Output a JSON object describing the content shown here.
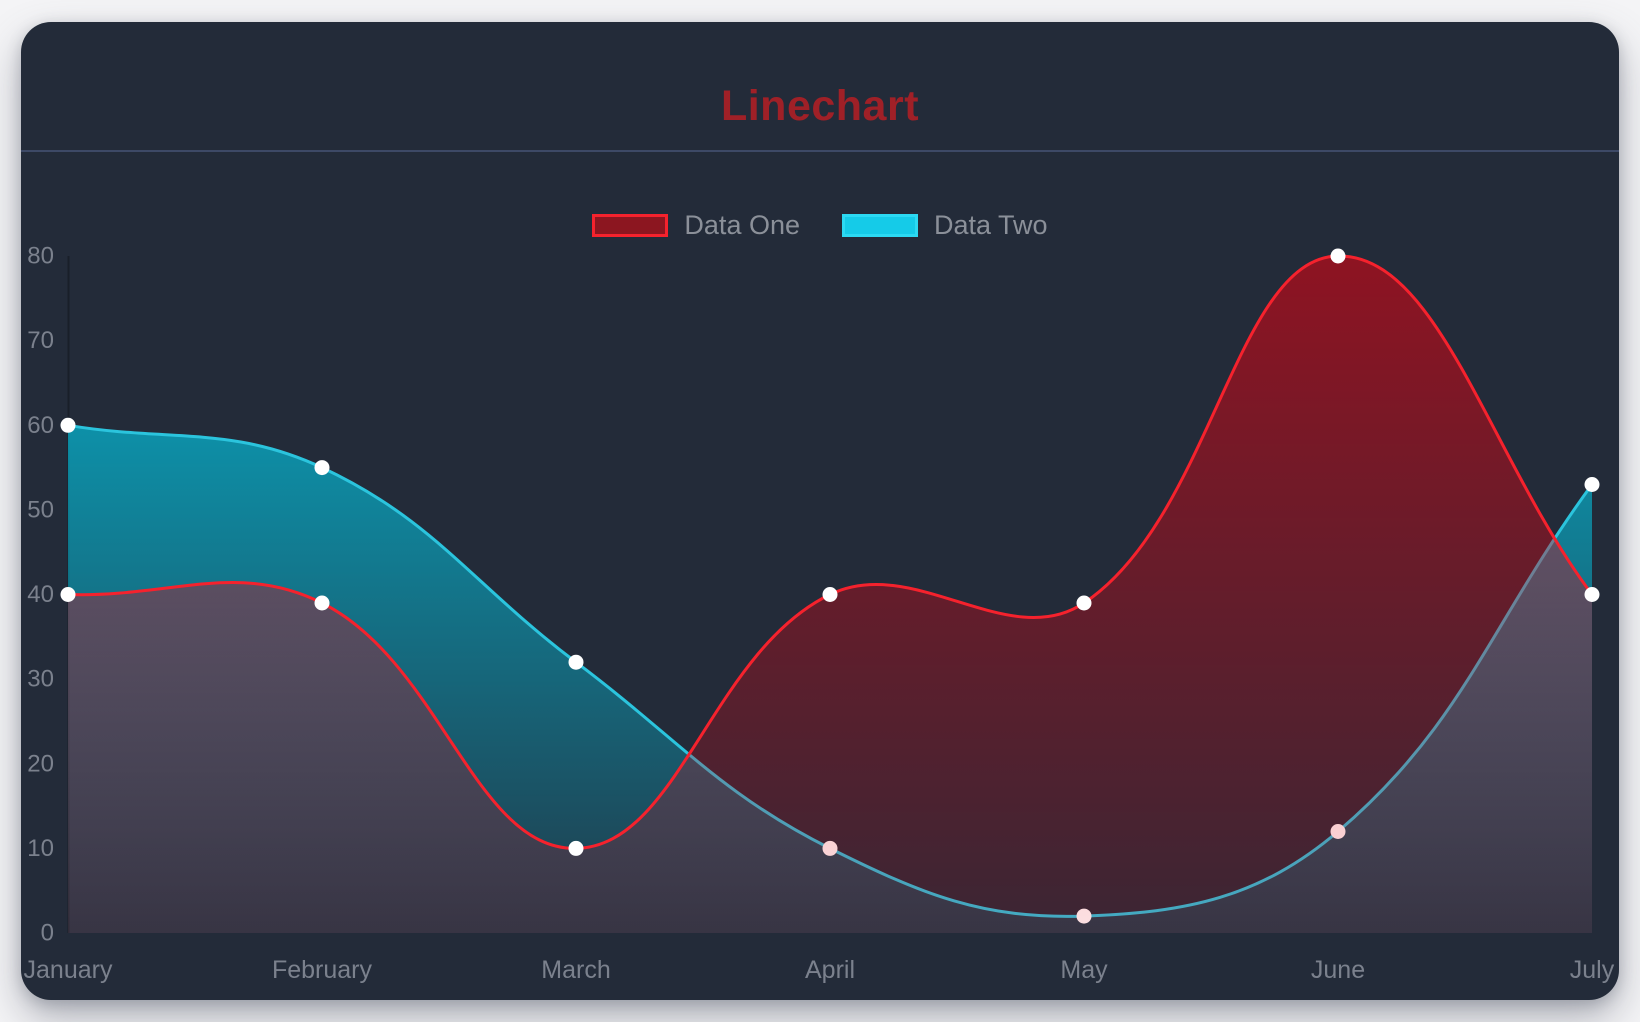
{
  "card": {
    "background": "#232b39",
    "divider_color": "#3d4966",
    "page_background": "#f4f4f6"
  },
  "chart_data": {
    "type": "line",
    "title": "Linechart",
    "title_color": "#a02027",
    "categories": [
      "January",
      "February",
      "March",
      "April",
      "May",
      "June",
      "July"
    ],
    "series": [
      {
        "name": "Data One",
        "line_color": "#f5222d",
        "fill_top": "rgba(230,0,15,0.55)",
        "fill_bottom": "rgba(230,0,15,0.12)",
        "swatch_fill": "#8c1620",
        "swatch_border": "#f5222d",
        "values": [
          40,
          39,
          10,
          40,
          39,
          80,
          40
        ]
      },
      {
        "name": "Data Two",
        "line_color": "#2bc4dd",
        "fill_top": "rgba(0,205,235,0.80)",
        "fill_bottom": "rgba(0,205,235,0.10)",
        "swatch_fill": "#15cbe8",
        "swatch_border": "#2cd9f2",
        "values": [
          60,
          55,
          32,
          10,
          2,
          12,
          53
        ]
      }
    ],
    "yticks": [
      0,
      10,
      20,
      30,
      40,
      50,
      60,
      70,
      80
    ],
    "ylim": [
      0,
      80
    ],
    "grid": false,
    "legend_position": "top",
    "point_color": "#ffffff",
    "point_radius": 7.5,
    "line_width": 3,
    "line_tension": 0.4,
    "axis_text_color": "#7b818d",
    "axis_line_color": "rgba(0,0,0,0.28)"
  }
}
